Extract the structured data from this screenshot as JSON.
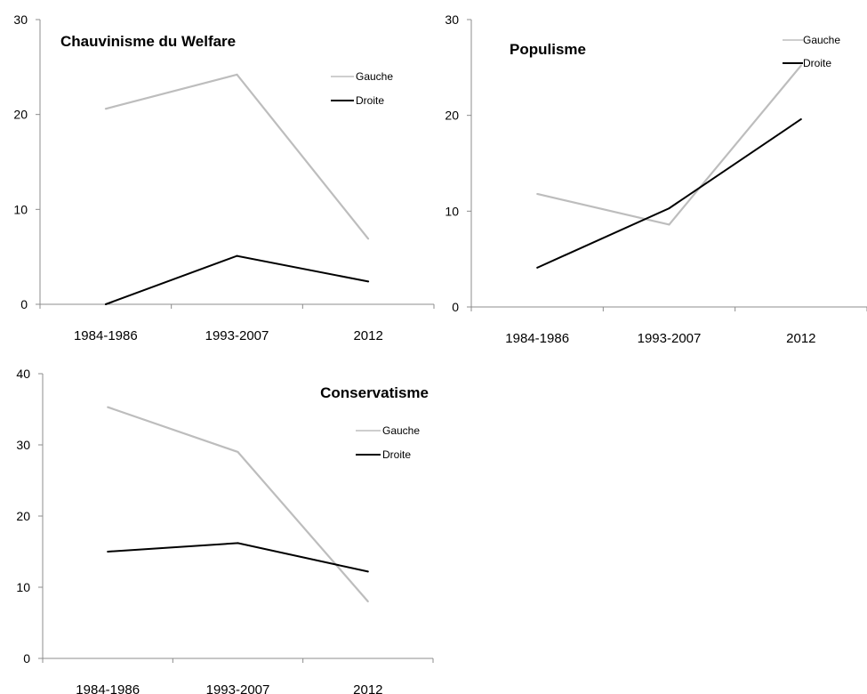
{
  "chart_data": [
    {
      "type": "line",
      "title": "Chauvinisme du Welfare",
      "categories": [
        "1984-1986",
        "1993-2007",
        "2012"
      ],
      "ylim": [
        0,
        30
      ],
      "yticks": [
        0,
        10,
        20,
        30
      ],
      "grid": false,
      "legend_position": "top-right",
      "series": [
        {
          "name": "Gauche",
          "color": "#bdbdbd",
          "values": [
            20.6,
            24.2,
            6.9
          ]
        },
        {
          "name": "Droite",
          "color": "#000000",
          "values": [
            0,
            5.1,
            2.4
          ]
        }
      ]
    },
    {
      "type": "line",
      "title": "Populisme",
      "categories": [
        "1984-1986",
        "1993-2007",
        "2012"
      ],
      "ylim": [
        0,
        30
      ],
      "yticks": [
        0,
        10,
        20,
        30
      ],
      "grid": false,
      "legend_position": "top-right",
      "series": [
        {
          "name": "Gauche",
          "color": "#bdbdbd",
          "values": [
            11.8,
            8.6,
            25.2
          ]
        },
        {
          "name": "Droite",
          "color": "#000000",
          "values": [
            4.1,
            10.3,
            19.6
          ]
        }
      ]
    },
    {
      "type": "line",
      "title": "Conservatisme",
      "categories": [
        "1984-1986",
        "1993-2007",
        "2012"
      ],
      "ylim": [
        0,
        40
      ],
      "yticks": [
        0,
        10,
        20,
        30,
        40
      ],
      "grid": false,
      "legend_position": "top-right",
      "series": [
        {
          "name": "Gauche",
          "color": "#bdbdbd",
          "values": [
            35.3,
            29.0,
            8.0
          ]
        },
        {
          "name": "Droite",
          "color": "#000000",
          "values": [
            15.0,
            16.2,
            12.2
          ]
        }
      ]
    }
  ]
}
